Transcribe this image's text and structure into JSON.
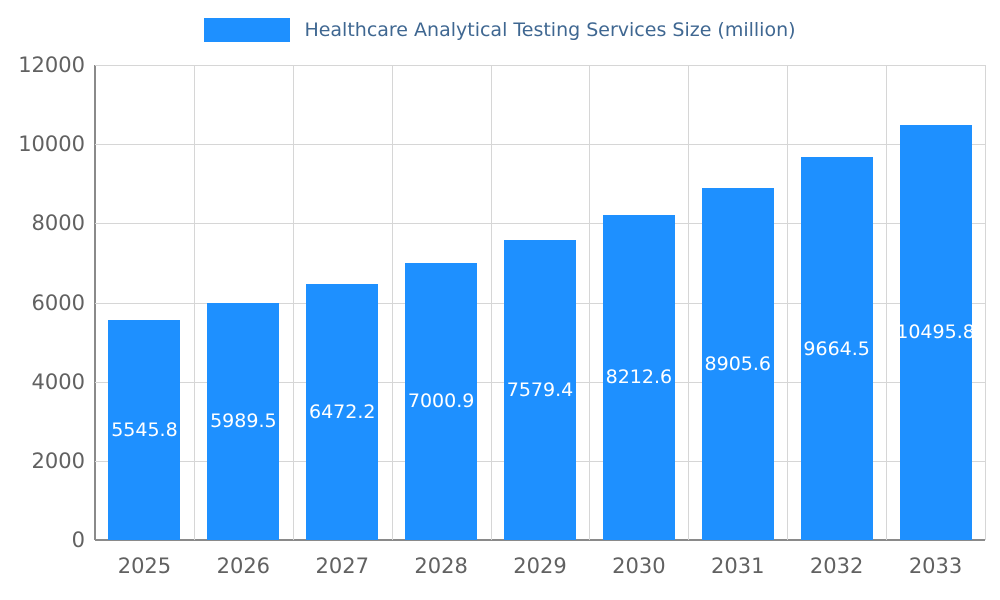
{
  "legend": {
    "title": "Healthcare Analytical Testing Services Size (million)",
    "swatch_color": "#1e90ff",
    "title_color": "#3f6791"
  },
  "chart_data": {
    "type": "bar",
    "title": "Healthcare Analytical Testing Services Size (million)",
    "categories": [
      "2025",
      "2026",
      "2027",
      "2028",
      "2029",
      "2030",
      "2031",
      "2032",
      "2033"
    ],
    "values": [
      5545.8,
      5989.5,
      6472.2,
      7000.9,
      7579.4,
      8212.6,
      8905.6,
      9664.5,
      10495.8
    ],
    "xlabel": "",
    "ylabel": "",
    "ylim": [
      0,
      12000
    ],
    "yticks": [
      0,
      2000,
      4000,
      6000,
      8000,
      10000,
      12000
    ],
    "bar_color": "#1e90ff",
    "data_label_color": "#ffffff",
    "grid": true,
    "legend_position": "top"
  }
}
